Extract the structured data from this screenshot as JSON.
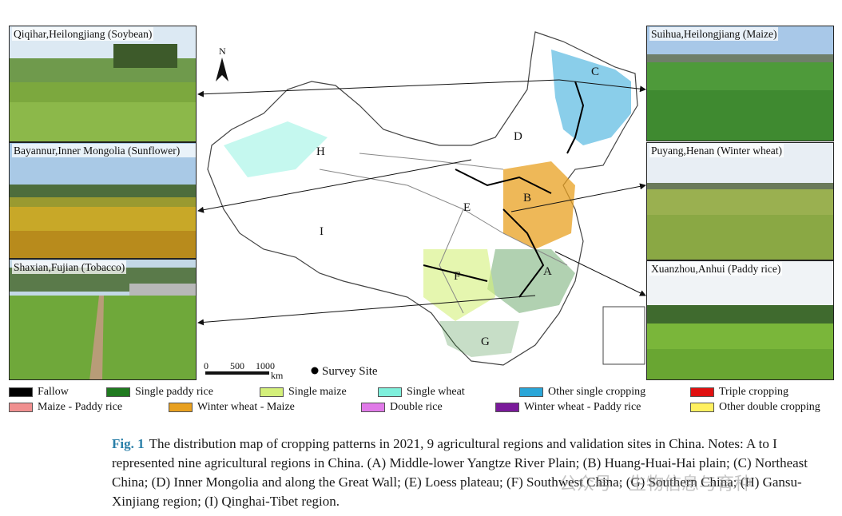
{
  "photos": {
    "qiqihar": "Qiqihar,Heilongjiang (Soybean)",
    "bayannur": "Bayannur,Inner Mongolia (Sunflower)",
    "shaxian": "Shaxian,Fujian (Tobacco)",
    "suihua": "Suihua,Heilongjiang (Maize)",
    "puyang": "Puyang,Henan (Winter wheat)",
    "xuanzhou": "Xuanzhou,Anhui (Paddy rice)"
  },
  "map": {
    "north": "N",
    "regions": [
      "A",
      "B",
      "C",
      "D",
      "E",
      "F",
      "G",
      "H",
      "I"
    ],
    "scale_ticks": [
      "0",
      "500",
      "1000"
    ],
    "scale_unit": "km",
    "survey_site": "Survey Site"
  },
  "legend": [
    {
      "label": "Fallow",
      "color": "#000000"
    },
    {
      "label": "Single paddy rice",
      "color": "#1f7a1f"
    },
    {
      "label": "Single maize",
      "color": "#d4f07a"
    },
    {
      "label": "Single wheat",
      "color": "#7ff0dc"
    },
    {
      "label": "Other single cropping",
      "color": "#2aa6d8"
    },
    {
      "label": "Triple cropping",
      "color": "#e01010"
    },
    {
      "label": "Maize - Paddy rice",
      "color": "#f09090"
    },
    {
      "label": "Winter wheat - Maize",
      "color": "#e8a020"
    },
    {
      "label": "Double rice",
      "color": "#e07ae8"
    },
    {
      "label": "Winter wheat - Paddy rice",
      "color": "#7a1a9a"
    },
    {
      "label": "Other double cropping",
      "color": "#fff060"
    }
  ],
  "caption": {
    "fig": "Fig. 1",
    "text": "The distribution map of cropping patterns in 2021, 9 agricultural regions and validation sites in China. Notes: A to I represented nine agricultural regions in China. (A) Middle-lower Yangtze River Plain; (B) Huang-Huai-Hai plain; (C) Northeast China; (D) Inner Mongolia and along the Great Wall; (E) Loess plateau; (F) Southwest China; (G) Southern China; (H) Gansu-Xinjiang region; (I) Qinghai-Tibet region."
  },
  "watermark": "公众号 · 生物信息与育种"
}
